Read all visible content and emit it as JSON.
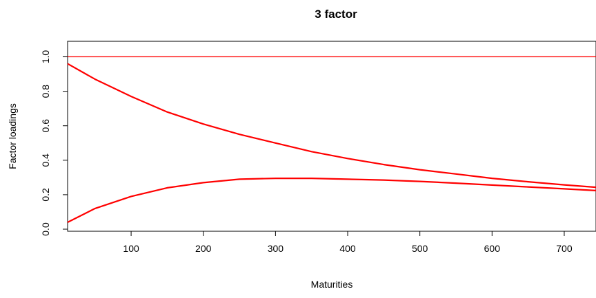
{
  "chart_data": {
    "type": "line",
    "title": "3 factor",
    "xlabel": "Maturities",
    "ylabel": "Factor loadings",
    "xlim": [
      12,
      744
    ],
    "ylim": [
      -0.012,
      1.09
    ],
    "x_ticks": [
      100,
      200,
      300,
      400,
      500,
      600,
      700
    ],
    "y_ticks": [
      0.0,
      0.2,
      0.4,
      0.6,
      0.8,
      1.0
    ],
    "y_tick_labels": [
      "0.0",
      "0.2",
      "0.4",
      "0.6",
      "0.8",
      "1.0"
    ],
    "grid": false,
    "line_color": "#ff0000",
    "series": [
      {
        "x": [
          12,
          744
        ],
        "y": [
          1.0,
          1.0
        ]
      },
      {
        "x": [
          12,
          50,
          100,
          150,
          200,
          250,
          300,
          350,
          400,
          450,
          500,
          550,
          600,
          650,
          700,
          744
        ],
        "y": [
          0.96,
          0.87,
          0.77,
          0.68,
          0.61,
          0.55,
          0.5,
          0.45,
          0.41,
          0.375,
          0.345,
          0.32,
          0.295,
          0.275,
          0.257,
          0.243
        ]
      },
      {
        "x": [
          12,
          50,
          100,
          150,
          200,
          250,
          300,
          350,
          400,
          450,
          500,
          550,
          600,
          650,
          700,
          744
        ],
        "y": [
          0.04,
          0.12,
          0.19,
          0.24,
          0.27,
          0.29,
          0.295,
          0.295,
          0.29,
          0.285,
          0.277,
          0.267,
          0.256,
          0.245,
          0.234,
          0.224
        ]
      }
    ]
  }
}
